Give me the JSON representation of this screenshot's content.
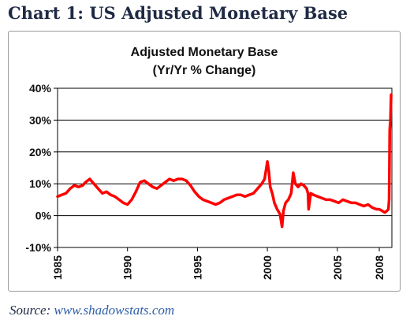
{
  "page_title": "Chart 1: US Adjusted Monetary Base",
  "source": {
    "prefix": "Source:",
    "link": "www.shadowstats.com"
  },
  "colors": {
    "series": "#ff0000",
    "title": "#1f2a44",
    "link": "#2f5faa",
    "grid": "#000000"
  },
  "chart_data": {
    "type": "line",
    "title": "Adjusted Monetary Base",
    "subtitle": "(Yr/Yr % Change)",
    "xlabel": "",
    "ylabel": "",
    "ylim": [
      -10,
      40
    ],
    "xlim": [
      1985.0,
      2008.9
    ],
    "yticks": [
      40,
      30,
      20,
      10,
      0,
      -10
    ],
    "ytick_labels": [
      "40%",
      "30%",
      "20%",
      "10%",
      "0%",
      "-10%"
    ],
    "xticks": [
      1985,
      1990,
      1995,
      2000,
      2005,
      2008
    ],
    "xtick_labels": [
      "1985",
      "1990",
      "1995",
      "2000",
      "2005",
      "2008"
    ],
    "grid": "horizontal",
    "legend": "none",
    "series": [
      {
        "x": [
          1985.0,
          1985.3,
          1985.6,
          1985.9,
          1986.2,
          1986.5,
          1986.8,
          1987.0,
          1987.3,
          1987.6,
          1987.9,
          1988.2,
          1988.5,
          1988.8,
          1989.1,
          1989.4,
          1989.7,
          1990.0,
          1990.3,
          1990.6,
          1990.9,
          1991.2,
          1991.5,
          1991.8,
          1992.1,
          1992.4,
          1992.7,
          1993.0,
          1993.3,
          1993.6,
          1993.9,
          1994.2,
          1994.5,
          1994.8,
          1995.1,
          1995.4,
          1995.7,
          1996.0,
          1996.3,
          1996.6,
          1996.9,
          1997.2,
          1997.5,
          1997.8,
          1998.1,
          1998.4,
          1998.7,
          1999.0,
          1999.3,
          1999.6,
          1999.8,
          2000.0,
          2000.1,
          2000.2,
          2000.35,
          2000.5,
          2000.7,
          2000.9,
          2001.05,
          2001.15,
          2001.3,
          2001.5,
          2001.7,
          2001.85,
          2002.0,
          2002.2,
          2002.4,
          2002.6,
          2002.8,
          2002.9,
          2002.95,
          2003.1,
          2003.3,
          2003.6,
          2003.9,
          2004.2,
          2004.5,
          2004.8,
          2005.1,
          2005.4,
          2005.7,
          2006.0,
          2006.3,
          2006.6,
          2006.9,
          2007.2,
          2007.5,
          2007.8,
          2008.0,
          2008.2,
          2008.4,
          2008.55,
          2008.65,
          2008.7,
          2008.75,
          2008.8,
          2008.85
        ],
        "values": [
          6.0,
          6.5,
          7.0,
          8.5,
          9.5,
          9.0,
          9.5,
          10.5,
          11.5,
          10.0,
          8.5,
          7.0,
          7.5,
          6.5,
          6.0,
          5.0,
          4.0,
          3.5,
          5.0,
          7.5,
          10.5,
          11.0,
          10.0,
          9.0,
          8.5,
          9.5,
          10.5,
          11.5,
          11.0,
          11.5,
          11.5,
          11.0,
          9.5,
          7.5,
          6.0,
          5.0,
          4.5,
          4.0,
          3.5,
          4.0,
          5.0,
          5.5,
          6.0,
          6.5,
          6.5,
          6.0,
          6.5,
          7.0,
          8.5,
          10.0,
          11.5,
          17.0,
          14.0,
          9.0,
          7.0,
          4.0,
          2.0,
          0.5,
          -3.5,
          1.5,
          4.0,
          5.0,
          7.0,
          13.5,
          10.0,
          9.0,
          10.0,
          9.5,
          8.5,
          7.0,
          2.0,
          7.0,
          6.5,
          6.0,
          5.5,
          5.0,
          5.0,
          4.5,
          4.0,
          5.0,
          4.5,
          4.0,
          4.0,
          3.5,
          3.0,
          3.5,
          2.5,
          2.0,
          2.0,
          1.5,
          1.0,
          1.5,
          2.0,
          5.0,
          27.0,
          30.0,
          38.0
        ]
      }
    ]
  }
}
